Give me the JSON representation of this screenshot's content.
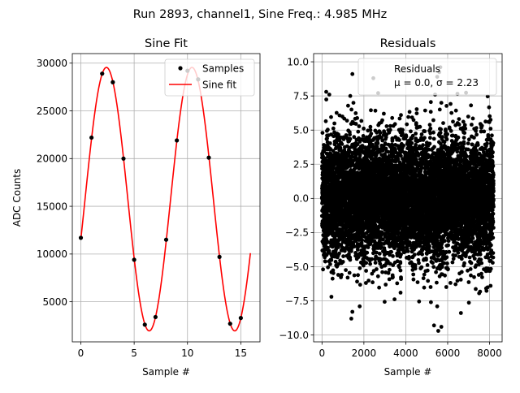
{
  "figure": {
    "suptitle": "Run 2893, channel1, Sine Freq.: 4.985 MHz"
  },
  "chart_data": [
    {
      "type": "scatter",
      "title": "Sine Fit",
      "xlabel": "Sample #",
      "ylabel": "ADC Counts",
      "xlim": [
        -0.8,
        16.8
      ],
      "ylim": [
        800,
        31000
      ],
      "xticks": [
        0,
        5,
        10,
        15
      ],
      "yticks": [
        5000,
        10000,
        15000,
        20000,
        25000,
        30000
      ],
      "grid": true,
      "legend": {
        "placement": "upper-right",
        "entries": [
          "Samples",
          "Sine fit"
        ]
      },
      "series": [
        {
          "name": "Samples",
          "kind": "scatter",
          "color": "#000000",
          "x": [
            0,
            1,
            2,
            3,
            4,
            5,
            6,
            7,
            8,
            9,
            10,
            11,
            12,
            13,
            14,
            15
          ],
          "y": [
            11700,
            22200,
            28900,
            28000,
            20000,
            9400,
            2600,
            3400,
            11500,
            21900,
            29200,
            28300,
            20100,
            9700,
            2700,
            3300
          ]
        },
        {
          "name": "Sine fit",
          "kind": "line",
          "color": "#ff0000",
          "x_range": [
            0,
            15.9
          ],
          "offset": 15750,
          "amplitude": 13800,
          "period": 8.0225,
          "phase_peak_x": 2.4
        }
      ]
    },
    {
      "type": "scatter",
      "title": "Residuals",
      "xlabel": "Sample #",
      "ylabel": "",
      "xlim": [
        -400,
        8600
      ],
      "ylim": [
        -10.5,
        10.6
      ],
      "xticks": [
        0,
        2000,
        4000,
        6000,
        8000
      ],
      "yticks": [
        -10.0,
        -7.5,
        -5.0,
        -2.5,
        0.0,
        2.5,
        5.0,
        7.5,
        10.0
      ],
      "grid": true,
      "legend": {
        "placement": "upper-right",
        "entries": [
          "Residuals",
          "μ = 0.0, σ = 2.23"
        ]
      },
      "series": [
        {
          "name": "Residuals",
          "kind": "scatter",
          "color": "#000000",
          "n_points": 8192,
          "mean": 0.0,
          "sigma": 2.23,
          "x_range": [
            0,
            8191
          ],
          "outliers": [
            {
              "x": 1400,
              "y": -8.8
            },
            {
              "x": 1450,
              "y": -8.3
            },
            {
              "x": 5350,
              "y": -9.3
            },
            {
              "x": 5550,
              "y": -9.7
            },
            {
              "x": 5700,
              "y": -9.4
            },
            {
              "x": 5500,
              "y": -7.9
            },
            {
              "x": 5650,
              "y": 9.6
            },
            {
              "x": 5500,
              "y": 8.9
            },
            {
              "x": 2450,
              "y": 8.8
            },
            {
              "x": 1450,
              "y": 9.1
            },
            {
              "x": 1350,
              "y": 7.5
            },
            {
              "x": 1500,
              "y": 7.0
            },
            {
              "x": 5700,
              "y": 7.0
            },
            {
              "x": 5400,
              "y": 7.6
            },
            {
              "x": 200,
              "y": 7.8
            },
            {
              "x": 350,
              "y": 7.6
            },
            {
              "x": 7950,
              "y": 5.6
            },
            {
              "x": 8050,
              "y": 5.1
            },
            {
              "x": 7950,
              "y": -5.3
            },
            {
              "x": 8050,
              "y": -6.4
            },
            {
              "x": 50,
              "y": -5.2
            },
            {
              "x": 450,
              "y": -7.2
            },
            {
              "x": 3750,
              "y": -6.9
            },
            {
              "x": 5200,
              "y": -7.6
            },
            {
              "x": 1800,
              "y": -7.9
            },
            {
              "x": 4500,
              "y": 5.4
            },
            {
              "x": 2950,
              "y": 6.2
            }
          ]
        }
      ]
    }
  ]
}
